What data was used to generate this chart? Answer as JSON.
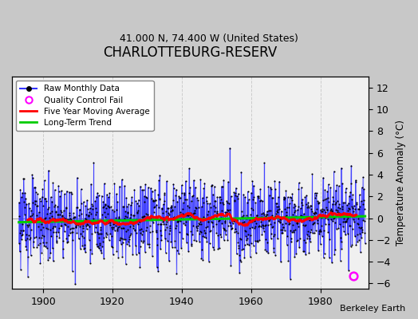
{
  "title": "CHARLOTTEBURG-RESERV",
  "subtitle": "41.000 N, 74.400 W (United States)",
  "ylabel": "Temperature Anomaly (°C)",
  "attribution": "Berkeley Earth",
  "year_start": 1893,
  "year_end": 1993,
  "xlim": [
    1891,
    1994
  ],
  "ylim": [
    -6.5,
    13.0
  ],
  "yticks": [
    -6,
    -4,
    -2,
    0,
    2,
    4,
    6,
    8,
    10,
    12
  ],
  "xticks": [
    1900,
    1920,
    1940,
    1960,
    1980
  ],
  "raw_color": "#3333ff",
  "raw_fill_color": "#aaaaff",
  "trend_color": "#00cc00",
  "moving_avg_color": "#ff0000",
  "qc_fail_color": "#ff00ff",
  "dot_color": "#000000",
  "background_color": "#f0f0f0",
  "outer_background": "#c8c8c8",
  "legend_background": "#ffffff",
  "grid_color": "#cccccc",
  "noise_std": 1.8,
  "qc_fail_t": 1989.5,
  "qc_fail_y": -5.3
}
